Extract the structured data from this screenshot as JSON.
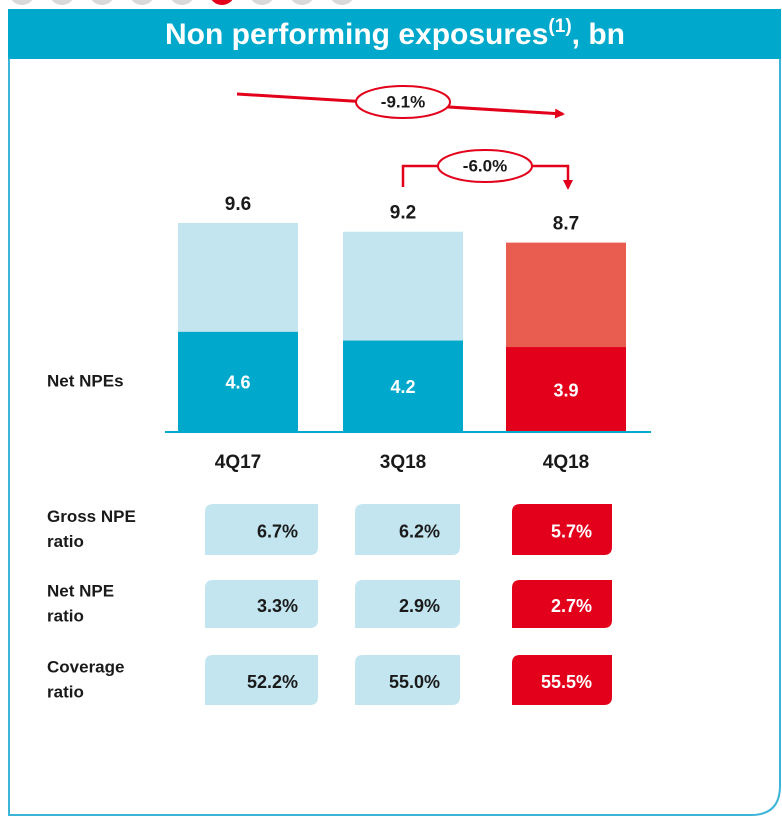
{
  "chart_data": {
    "type": "bar",
    "title": {
      "text": "Non performing exposures",
      "note": "(1)",
      "unit": ", bn"
    },
    "categories": [
      "4Q17",
      "3Q18",
      "4Q18"
    ],
    "series": [
      {
        "values": [
          9.6,
          9.2,
          8.7
        ],
        "colors": [
          "#c2e5ef",
          "#c2e5ef",
          "#e95d50"
        ]
      },
      {
        "name": "Net NPEs",
        "values": [
          4.6,
          4.2,
          3.9
        ],
        "colors": [
          "#00a9cb",
          "#00a9cb",
          "#e2001a"
        ]
      }
    ],
    "annotations": [
      "-9.1%",
      "-6.0%"
    ],
    "table": {
      "rows": [
        {
          "label": [
            "Gross NPE",
            "ratio"
          ],
          "values": [
            6.7,
            6.2,
            5.7
          ],
          "value_labels": [
            "6.7%",
            "6.2%",
            "5.7%"
          ]
        },
        {
          "label": [
            "Net NPE",
            "ratio"
          ],
          "values": [
            3.3,
            2.9,
            2.7
          ],
          "value_labels": [
            "3.3%",
            "2.9%",
            "2.7%"
          ]
        },
        {
          "label": [
            "Coverage",
            "ratio"
          ],
          "values": [
            52.2,
            55.0,
            55.5
          ],
          "value_labels": [
            "52.2%",
            "55.0%",
            "55.5%"
          ]
        }
      ],
      "colors": [
        "#c2e5ef",
        "#c2e5ef",
        "#e2001a"
      ],
      "text_colors": [
        "#1a1a1a",
        "#1a1a1a",
        "#ffffff"
      ]
    }
  }
}
